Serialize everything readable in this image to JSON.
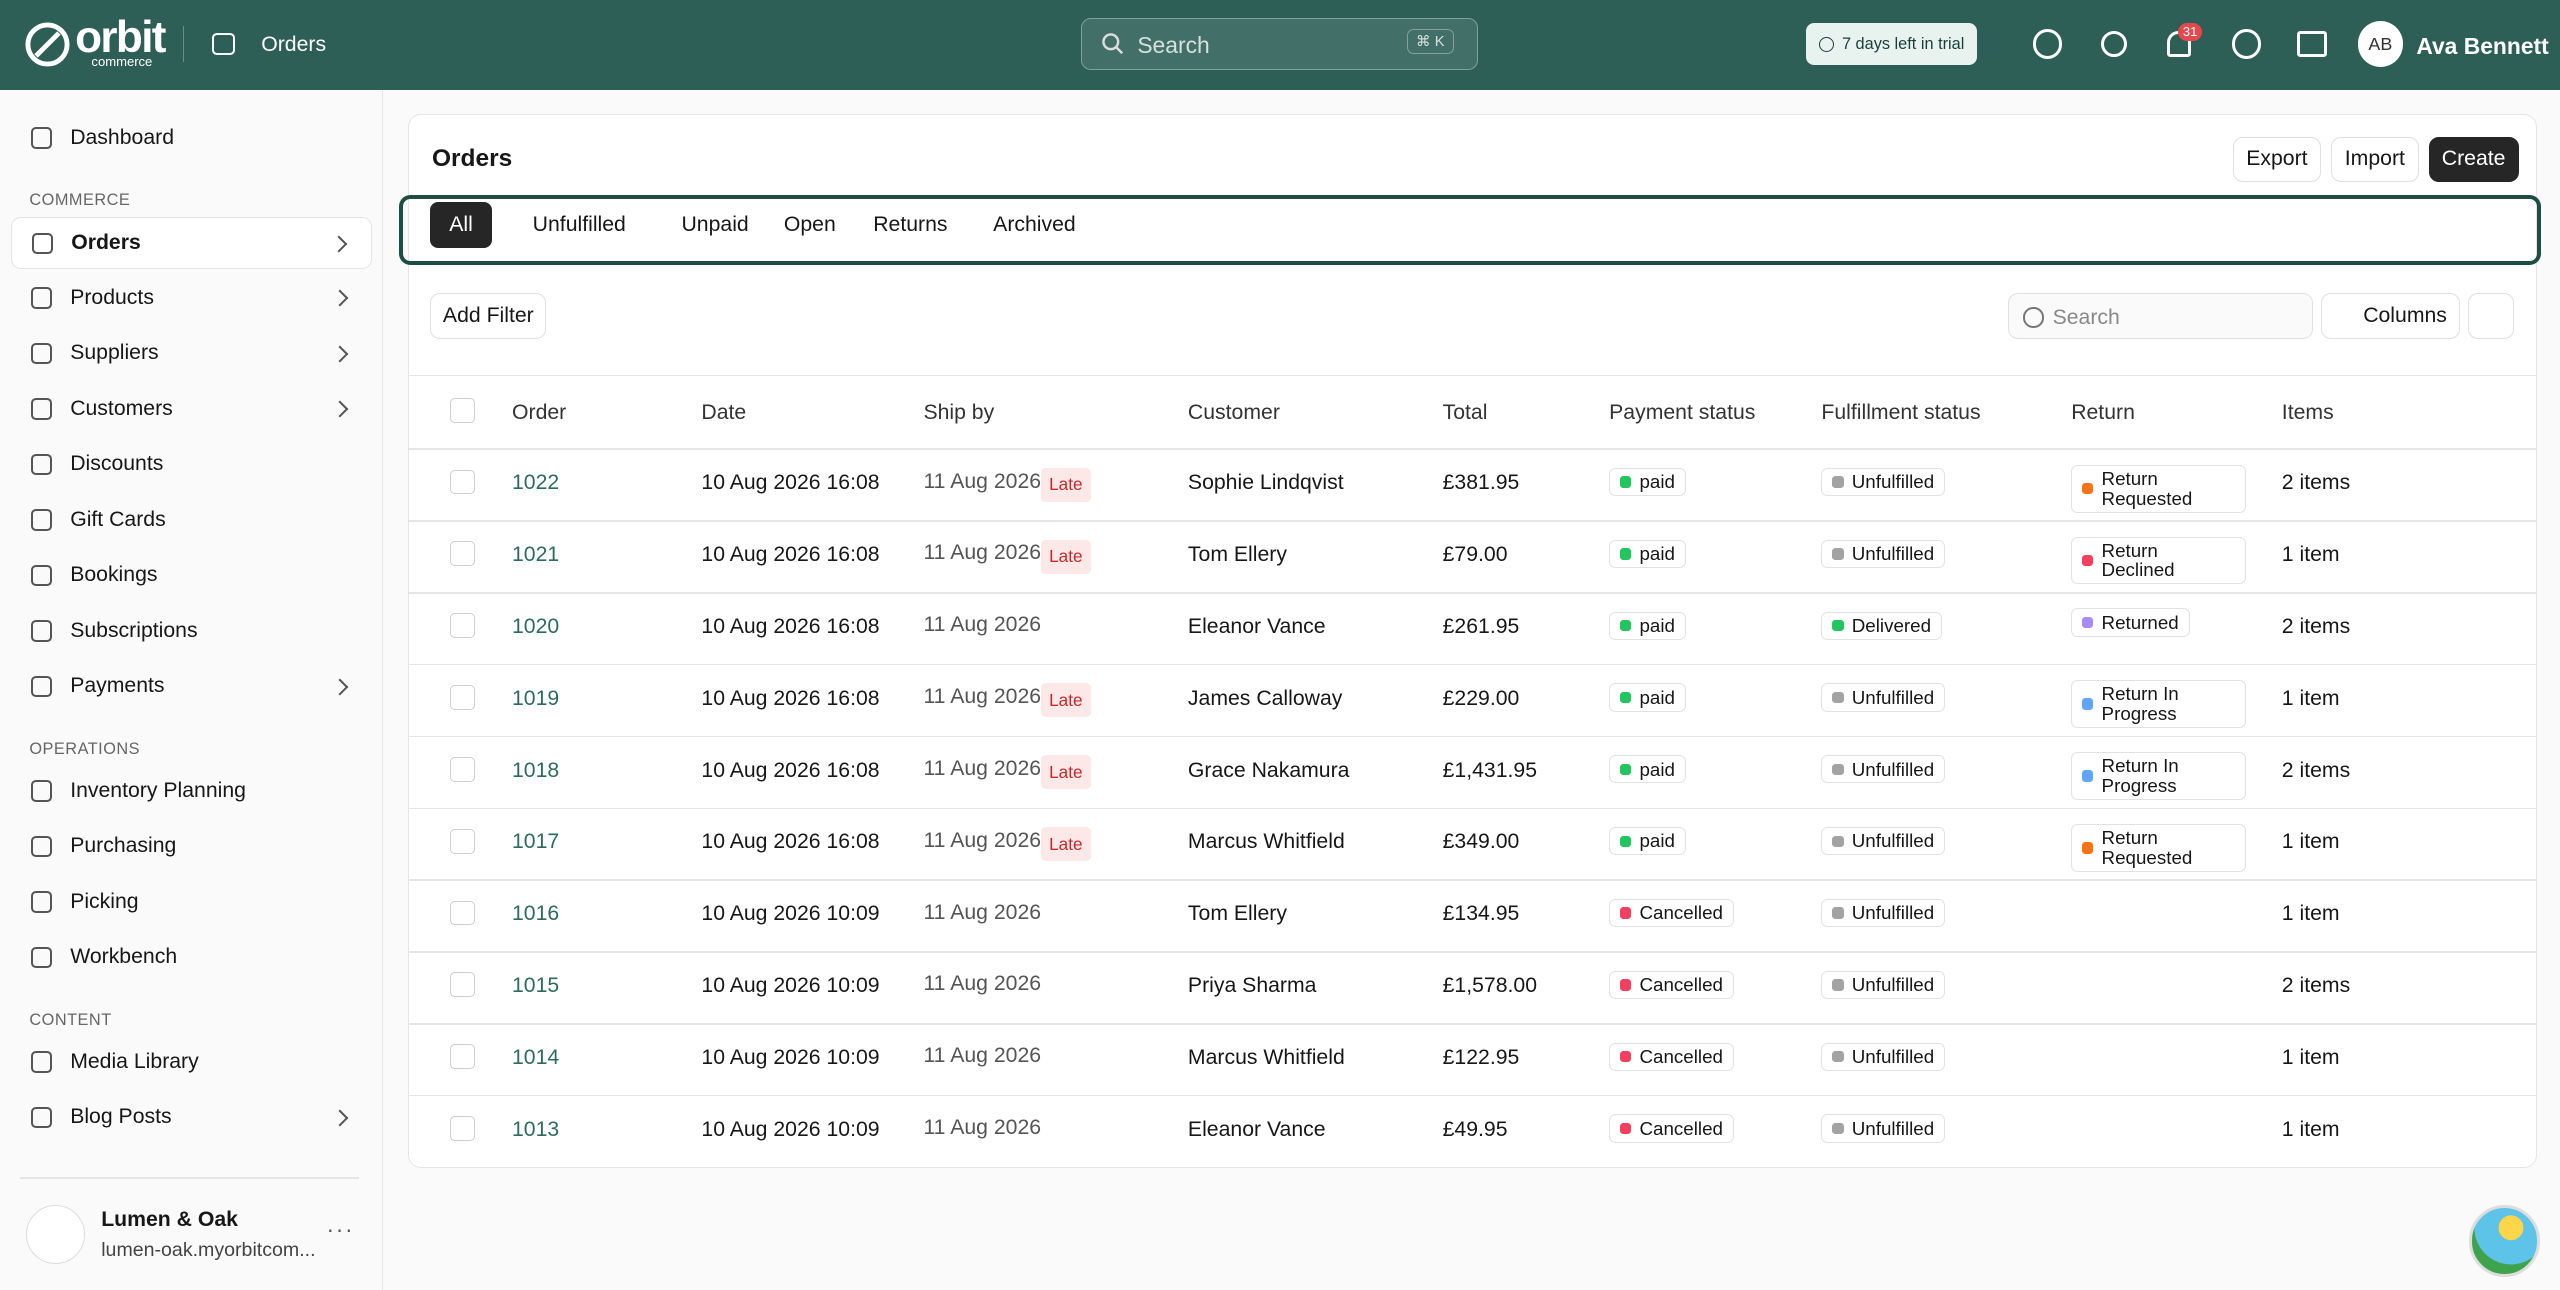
{
  "header": {
    "brand": "orbit",
    "brand_sub": "commerce",
    "page": "Orders",
    "search": "Search",
    "shortcut": "⌘ K",
    "trial": "7 days left in trial",
    "notifications": "31",
    "avatar": "AB",
    "user": "Ava Bennett"
  },
  "sidebar": {
    "top_items": [
      {
        "label": "Dashboard"
      }
    ],
    "sections": [
      {
        "title": "COMMERCE",
        "items": [
          {
            "label": "Orders",
            "expandable": true,
            "active": true
          },
          {
            "label": "Products",
            "expandable": true
          },
          {
            "label": "Suppliers",
            "expandable": true
          },
          {
            "label": "Customers",
            "expandable": true
          },
          {
            "label": "Discounts"
          },
          {
            "label": "Gift Cards"
          },
          {
            "label": "Bookings"
          },
          {
            "label": "Subscriptions"
          },
          {
            "label": "Payments",
            "expandable": true
          }
        ]
      },
      {
        "title": "OPERATIONS",
        "items": [
          {
            "label": "Inventory Planning"
          },
          {
            "label": "Purchasing"
          },
          {
            "label": "Picking"
          },
          {
            "label": "Workbench"
          }
        ]
      },
      {
        "title": "CONTENT",
        "items": [
          {
            "label": "Media Library"
          },
          {
            "label": "Blog Posts",
            "expandable": true
          }
        ]
      }
    ]
  },
  "store": {
    "name": "Lumen & Oak",
    "domain": "lumen-oak.myorbitcom..."
  },
  "orders": {
    "title": "Orders",
    "actions": [
      "Export",
      "Import",
      "Create"
    ],
    "tabs": [
      {
        "label": "All",
        "active": true
      },
      {
        "label": "Unfulfilled"
      },
      {
        "label": "Unpaid"
      },
      {
        "label": "Open"
      },
      {
        "label": "Returns"
      },
      {
        "label": "Archived"
      }
    ],
    "add_filter": "Add Filter",
    "search": "Search",
    "columns_button": "Columns",
    "table": {
      "columns": [
        "Order",
        "Date",
        "Ship by",
        "Customer",
        "Total",
        "Payment status",
        "Fulfillment status",
        "Return",
        "Items"
      ],
      "rows": [
        {
          "order": "1022",
          "date": "10 Aug 2026 16:08",
          "ship_by": "11 Aug 2026",
          "late": "Late",
          "customer": "Sophie Lindqvist",
          "total": "£381.95",
          "payment": {
            "label": "paid",
            "color": "#22c55e"
          },
          "fulfillment": {
            "label": "Unfulfilled",
            "color": "#a3a3a3"
          },
          "return": {
            "label": "Return Requested",
            "color": "#f97316"
          },
          "items": "2 items"
        },
        {
          "order": "1021",
          "date": "10 Aug 2026 16:08",
          "ship_by": "11 Aug 2026",
          "late": "Late",
          "customer": "Tom Ellery",
          "total": "£79.00",
          "payment": {
            "label": "paid",
            "color": "#22c55e"
          },
          "fulfillment": {
            "label": "Unfulfilled",
            "color": "#a3a3a3"
          },
          "return": {
            "label": "Return Declined",
            "color": "#f43f5e"
          },
          "items": "1 item"
        },
        {
          "order": "1020",
          "date": "10 Aug 2026 16:08",
          "ship_by": "11 Aug 2026",
          "late": null,
          "customer": "Eleanor Vance",
          "total": "£261.95",
          "payment": {
            "label": "paid",
            "color": "#22c55e"
          },
          "fulfillment": {
            "label": "Delivered",
            "color": "#22c55e"
          },
          "return": {
            "label": "Returned",
            "color": "#a78bfa"
          },
          "items": "2 items"
        },
        {
          "order": "1019",
          "date": "10 Aug 2026 16:08",
          "ship_by": "11 Aug 2026",
          "late": "Late",
          "customer": "James Calloway",
          "total": "£229.00",
          "payment": {
            "label": "paid",
            "color": "#22c55e"
          },
          "fulfillment": {
            "label": "Unfulfilled",
            "color": "#a3a3a3"
          },
          "return": {
            "label": "Return In Progress",
            "color": "#60a5fa"
          },
          "items": "1 item"
        },
        {
          "order": "1018",
          "date": "10 Aug 2026 16:08",
          "ship_by": "11 Aug 2026",
          "late": "Late",
          "customer": "Grace Nakamura",
          "total": "£1,431.95",
          "payment": {
            "label": "paid",
            "color": "#22c55e"
          },
          "fulfillment": {
            "label": "Unfulfilled",
            "color": "#a3a3a3"
          },
          "return": {
            "label": "Return In Progress",
            "color": "#60a5fa"
          },
          "items": "2 items"
        },
        {
          "order": "1017",
          "date": "10 Aug 2026 16:08",
          "ship_by": "11 Aug 2026",
          "late": "Late",
          "customer": "Marcus Whitfield",
          "total": "£349.00",
          "payment": {
            "label": "paid",
            "color": "#22c55e"
          },
          "fulfillment": {
            "label": "Unfulfilled",
            "color": "#a3a3a3"
          },
          "return": {
            "label": "Return Requested",
            "color": "#f97316"
          },
          "items": "1 item"
        },
        {
          "order": "1016",
          "date": "10 Aug 2026 10:09",
          "ship_by": "11 Aug 2026",
          "late": null,
          "customer": "Tom Ellery",
          "total": "£134.95",
          "payment": {
            "label": "Cancelled",
            "color": "#f43f5e"
          },
          "fulfillment": {
            "label": "Unfulfilled",
            "color": "#a3a3a3"
          },
          "return": null,
          "items": "1 item"
        },
        {
          "order": "1015",
          "date": "10 Aug 2026 10:09",
          "ship_by": "11 Aug 2026",
          "late": null,
          "customer": "Priya Sharma",
          "total": "£1,578.00",
          "payment": {
            "label": "Cancelled",
            "color": "#f43f5e"
          },
          "fulfillment": {
            "label": "Unfulfilled",
            "color": "#a3a3a3"
          },
          "return": null,
          "items": "2 items"
        },
        {
          "order": "1014",
          "date": "10 Aug 2026 10:09",
          "ship_by": "11 Aug 2026",
          "late": null,
          "customer": "Marcus Whitfield",
          "total": "£122.95",
          "payment": {
            "label": "Cancelled",
            "color": "#f43f5e"
          },
          "fulfillment": {
            "label": "Unfulfilled",
            "color": "#a3a3a3"
          },
          "return": null,
          "items": "1 item"
        },
        {
          "order": "1013",
          "date": "10 Aug 2026 10:09",
          "ship_by": "11 Aug 2026",
          "late": null,
          "customer": "Eleanor Vance",
          "total": "£49.95",
          "payment": {
            "label": "Cancelled",
            "color": "#f43f5e"
          },
          "fulfillment": {
            "label": "Unfulfilled",
            "color": "#a3a3a3"
          },
          "return": null,
          "items": "1 item"
        }
      ]
    }
  }
}
